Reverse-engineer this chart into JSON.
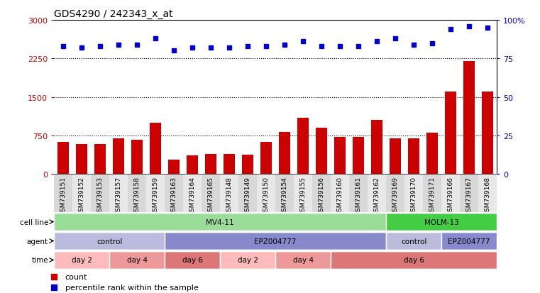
{
  "title": "GDS4290 / 242343_x_at",
  "samples": [
    "GSM739151",
    "GSM739152",
    "GSM739153",
    "GSM739157",
    "GSM739158",
    "GSM739159",
    "GSM739163",
    "GSM739164",
    "GSM739165",
    "GSM739148",
    "GSM739149",
    "GSM739150",
    "GSM739154",
    "GSM739155",
    "GSM739156",
    "GSM739160",
    "GSM739161",
    "GSM739162",
    "GSM739169",
    "GSM739170",
    "GSM739171",
    "GSM739166",
    "GSM739167",
    "GSM739168"
  ],
  "counts": [
    620,
    590,
    590,
    700,
    670,
    1000,
    280,
    370,
    390,
    390,
    380,
    620,
    820,
    1100,
    900,
    720,
    720,
    1050,
    700,
    700,
    800,
    1600,
    2200,
    1600
  ],
  "percentile_ranks": [
    83,
    82,
    83,
    84,
    84,
    88,
    80,
    82,
    82,
    82,
    83,
    83,
    84,
    86,
    83,
    83,
    83,
    86,
    88,
    84,
    85,
    94,
    96,
    95
  ],
  "ylim_left": [
    0,
    3000
  ],
  "ylim_right": [
    0,
    100
  ],
  "yticks_left": [
    0,
    750,
    1500,
    2250,
    3000
  ],
  "yticks_right": [
    0,
    25,
    50,
    75,
    100
  ],
  "bar_color": "#cc0000",
  "dot_color": "#0000cc",
  "cell_line_data": [
    {
      "label": "MV4-11",
      "start": 0,
      "end": 18,
      "color": "#99dd99"
    },
    {
      "label": "MOLM-13",
      "start": 18,
      "end": 24,
      "color": "#44cc44"
    }
  ],
  "agent_row": [
    {
      "label": "control",
      "start": 0,
      "end": 6,
      "color": "#bbbbdd"
    },
    {
      "label": "EPZ004777",
      "start": 6,
      "end": 18,
      "color": "#8888cc"
    },
    {
      "label": "control",
      "start": 18,
      "end": 21,
      "color": "#bbbbdd"
    },
    {
      "label": "EPZ004777",
      "start": 21,
      "end": 24,
      "color": "#8888cc"
    }
  ],
  "time_row": [
    {
      "label": "day 2",
      "start": 0,
      "end": 3,
      "color": "#ffbbbb"
    },
    {
      "label": "day 4",
      "start": 3,
      "end": 6,
      "color": "#ee9999"
    },
    {
      "label": "day 6",
      "start": 6,
      "end": 9,
      "color": "#dd7777"
    },
    {
      "label": "day 2",
      "start": 9,
      "end": 12,
      "color": "#ffbbbb"
    },
    {
      "label": "day 4",
      "start": 12,
      "end": 15,
      "color": "#ee9999"
    },
    {
      "label": "day 6",
      "start": 15,
      "end": 24,
      "color": "#dd7777"
    }
  ],
  "row_labels": [
    "cell line",
    "agent",
    "time"
  ],
  "legend": [
    {
      "label": "count",
      "color": "#cc0000"
    },
    {
      "label": "percentile rank within the sample",
      "color": "#0000cc"
    }
  ]
}
